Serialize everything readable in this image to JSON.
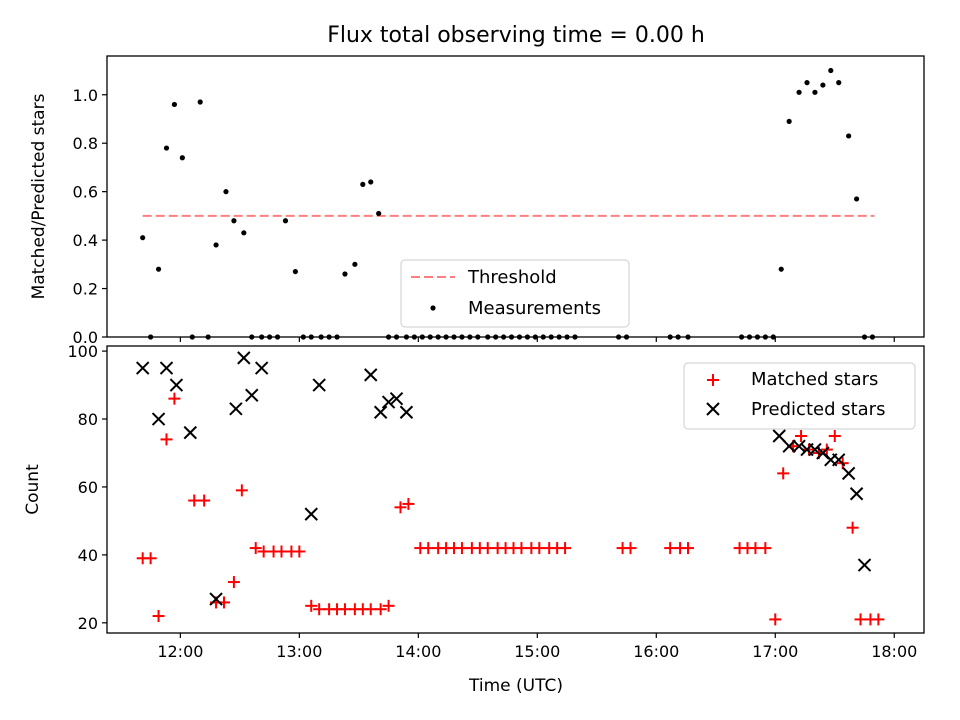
{
  "chart_data": [
    {
      "type": "scatter",
      "title": "Flux total observing time = 0.00 h",
      "ylabel": "Matched/Predicted stars",
      "xlabel": "",
      "xlim": [
        "11:23",
        "18:15"
      ],
      "ylim": [
        0,
        1.16
      ],
      "yticks": [
        "0.0",
        "0.2",
        "0.4",
        "0.6",
        "0.8",
        "1.0"
      ],
      "legend_position": "lower center",
      "series": [
        {
          "name": "Threshold",
          "style": "dashed line",
          "color": "#ff7f7f",
          "x": [
            "11:41",
            "17:50"
          ],
          "y": [
            0.5,
            0.5
          ]
        },
        {
          "name": "Measurements",
          "style": "dot",
          "color": "#000000",
          "x": [
            "11:41",
            "11:45",
            "11:49",
            "11:53",
            "11:57",
            "12:01",
            "12:06",
            "12:10",
            "12:14",
            "12:18",
            "12:23",
            "12:27",
            "12:32",
            "12:36",
            "12:41",
            "12:45",
            "12:49",
            "12:53",
            "12:58",
            "13:02",
            "13:06",
            "13:11",
            "13:15",
            "13:19",
            "13:23",
            "13:28",
            "13:32",
            "13:36",
            "13:40",
            "13:45",
            "13:49",
            "13:54",
            "13:58",
            "14:02",
            "14:06",
            "14:10",
            "14:14",
            "14:18",
            "14:22",
            "14:26",
            "14:30",
            "14:35",
            "14:39",
            "14:43",
            "14:47",
            "14:51",
            "14:55",
            "14:59",
            "15:03",
            "15:07",
            "15:11",
            "15:15",
            "15:19",
            "15:41",
            "15:45",
            "16:07",
            "16:11",
            "16:16",
            "16:43",
            "16:47",
            "16:51",
            "16:55",
            "16:59",
            "17:03",
            "17:07",
            "17:12",
            "17:16",
            "17:20",
            "17:24",
            "17:28",
            "17:32",
            "17:37",
            "17:41",
            "17:45",
            "17:49"
          ],
          "y": [
            0.41,
            0.0,
            0.28,
            0.78,
            0.96,
            0.74,
            0.0,
            0.97,
            0.0,
            0.38,
            0.6,
            0.48,
            0.43,
            0.0,
            0.0,
            0.0,
            0.0,
            0.48,
            0.27,
            0.0,
            0.0,
            0.0,
            0.0,
            0.0,
            0.26,
            0.3,
            0.63,
            0.64,
            0.51,
            0.0,
            0.0,
            0.0,
            0.0,
            0.0,
            0.0,
            0.0,
            0.0,
            0.0,
            0.0,
            0.0,
            0.0,
            0.0,
            0.0,
            0.0,
            0.0,
            0.0,
            0.0,
            0.0,
            0.0,
            0.0,
            0.0,
            0.0,
            0.0,
            0.0,
            0.0,
            0.0,
            0.0,
            0.0,
            0.0,
            0.0,
            0.0,
            0.0,
            0.0,
            0.28,
            0.89,
            1.01,
            1.05,
            1.01,
            1.04,
            1.1,
            1.05,
            0.83,
            0.57,
            0.0,
            0.0
          ]
        }
      ]
    },
    {
      "type": "scatter",
      "title": "",
      "ylabel": "Count",
      "xlabel": "Time (UTC)",
      "xlim": [
        "11:23",
        "18:15"
      ],
      "ylim": [
        17,
        101.5
      ],
      "yticks": [
        "20",
        "40",
        "60",
        "80",
        "100"
      ],
      "xticks": [
        "12:00",
        "13:00",
        "14:00",
        "15:00",
        "16:00",
        "17:00",
        "18:00"
      ],
      "legend_position": "upper right",
      "series": [
        {
          "name": "Matched stars",
          "marker": "+",
          "color": "#ff0000",
          "x": [
            "11:41",
            "11:45",
            "11:49",
            "11:53",
            "11:57",
            "12:07",
            "12:12",
            "12:18",
            "12:22",
            "12:27",
            "12:31",
            "12:38",
            "12:42",
            "12:47",
            "12:51",
            "12:56",
            "13:00",
            "13:06",
            "13:10",
            "13:15",
            "13:19",
            "13:23",
            "13:28",
            "13:32",
            "13:36",
            "13:41",
            "13:45",
            "13:51",
            "13:55",
            "14:01",
            "14:05",
            "14:10",
            "14:14",
            "14:18",
            "14:22",
            "14:27",
            "14:31",
            "14:35",
            "14:40",
            "14:44",
            "14:48",
            "14:52",
            "14:57",
            "15:01",
            "15:06",
            "15:10",
            "15:14",
            "15:43",
            "15:47",
            "16:07",
            "16:12",
            "16:16",
            "16:42",
            "16:46",
            "16:50",
            "16:55",
            "17:00",
            "17:04",
            "17:09",
            "17:13",
            "17:17",
            "17:22",
            "17:26",
            "17:30",
            "17:34",
            "17:39",
            "17:43",
            "17:48",
            "17:52"
          ],
          "y": [
            39,
            39,
            22,
            74,
            86,
            56,
            56,
            26,
            26,
            32,
            59,
            42,
            41,
            41,
            41,
            41,
            41,
            25,
            24,
            24,
            24,
            24,
            24,
            24,
            24,
            24,
            25,
            54,
            55,
            42,
            42,
            42,
            42,
            42,
            42,
            42,
            42,
            42,
            42,
            42,
            42,
            42,
            42,
            42,
            42,
            42,
            42,
            42,
            42,
            42,
            42,
            42,
            42,
            42,
            42,
            42,
            21,
            64,
            72,
            75,
            71,
            70,
            71,
            75,
            67,
            48,
            21,
            21,
            21
          ]
        },
        {
          "name": "Predicted stars",
          "marker": "x",
          "color": "#000000",
          "x": [
            "11:41",
            "11:49",
            "11:53",
            "11:58",
            "12:05",
            "12:18",
            "12:28",
            "12:32",
            "12:36",
            "12:41",
            "13:06",
            "13:10",
            "13:36",
            "13:41",
            "13:45",
            "13:49",
            "13:54",
            "17:02",
            "17:07",
            "17:12",
            "17:16",
            "17:20",
            "17:24",
            "17:28",
            "17:32",
            "17:37",
            "17:41",
            "17:45"
          ],
          "y": [
            95,
            80,
            95,
            90,
            76,
            27,
            83,
            98,
            87,
            95,
            52,
            90,
            93,
            82,
            85,
            86,
            82,
            75,
            72,
            72,
            71,
            71,
            70,
            68,
            68,
            64,
            58,
            37
          ]
        }
      ]
    }
  ]
}
